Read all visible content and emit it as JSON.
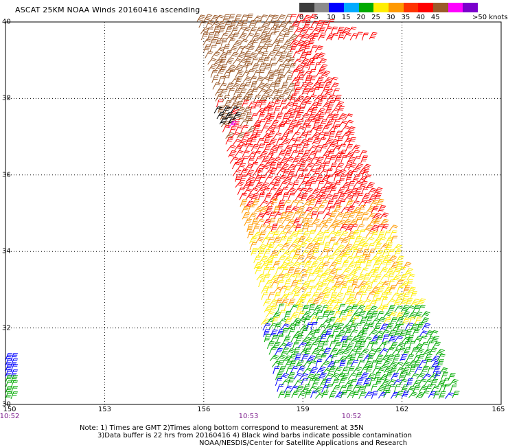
{
  "map": {
    "title": "ASCAT 25KM NOAA Winds 20160416 ascending",
    "lon_range": [
      150,
      165
    ],
    "lat_range": [
      30,
      40
    ],
    "lat_labels": [
      "30",
      "32",
      "34",
      "36",
      "38",
      "40"
    ],
    "lon_labels": [
      "150",
      "153",
      "156",
      "159",
      "162",
      "165"
    ],
    "time_labels": [
      "10:52",
      "10:53",
      "10:52"
    ],
    "grid": true
  },
  "colorbar": {
    "labels": [
      "0",
      "5",
      "10",
      "15",
      "20",
      "25",
      "30",
      "35",
      "40",
      "45"
    ],
    "unit_label": ">50 knots",
    "colors": [
      "#3c3c3c",
      "#8c8c8c",
      "#0000ff",
      "#00aaff",
      "#00aa00",
      "#ffee00",
      "#ff9900",
      "#ff3300",
      "#ff0000",
      "#9b5a2a",
      "#ff00ff",
      "#7a00cc"
    ]
  },
  "notes": {
    "line1": "Note: 1) Times are GMT 2)Times along bottom correspond to measurement at 35N",
    "line2": "3)Data buffer is 22 hrs from 20160416 4) Black wind barbs indicate possible contamination",
    "line3": "NOAA/NESDIS/Center for Satellite Applications and Research"
  }
}
